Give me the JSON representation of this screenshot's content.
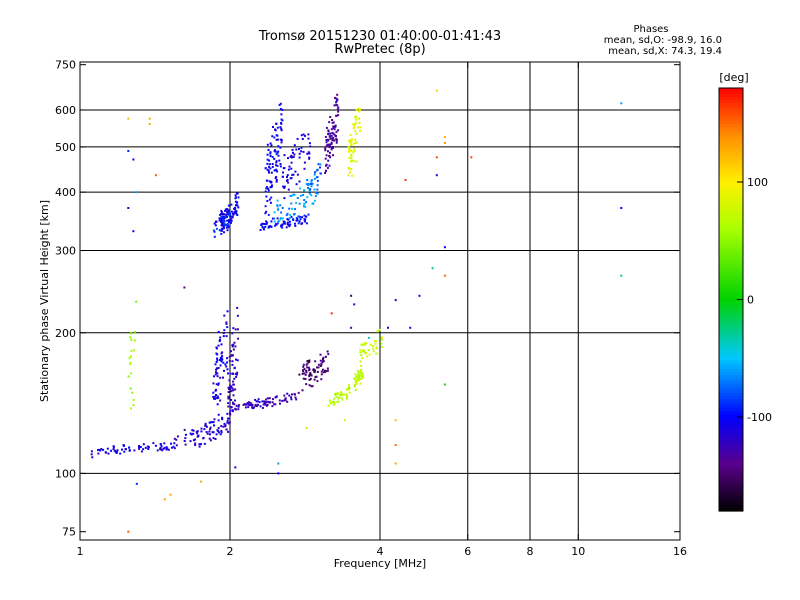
{
  "chart_data": {
    "type": "scatter",
    "title": "Tromsø 20151230 01:40:00-01:41:43",
    "subtitle": "RwPretec (8p)",
    "phase_box": {
      "title": "Phases",
      "line1": "mean, sd,O: -98.9, 16.0",
      "line2": "mean, sd,X:  74.3, 19.4"
    },
    "xlabel": "Frequency [MHz]",
    "ylabel": "Stationary phase Virtual Height [km]",
    "x_scale": "log",
    "y_scale": "log",
    "xlim": [
      1,
      16
    ],
    "ylim": [
      72,
      760
    ],
    "x_ticks": [
      1,
      2,
      4,
      6,
      8,
      10,
      16
    ],
    "x_ticklabels": [
      "1",
      "2",
      "4",
      "6",
      "8",
      "10",
      "16"
    ],
    "x_gridlines": [
      2,
      4,
      6,
      8,
      10
    ],
    "y_ticks": [
      75,
      100,
      200,
      300,
      400,
      500,
      600,
      750
    ],
    "y_ticklabels": [
      "75",
      "100",
      "200",
      "300",
      "400",
      "500",
      "600",
      "750"
    ],
    "y_gridlines": [
      100,
      200,
      300,
      400,
      500,
      600
    ],
    "grid": true,
    "colorbar": {
      "label": "[deg]",
      "min": -180,
      "max": 180,
      "ticks": [
        100,
        0,
        -100
      ],
      "ticklabels": [
        "100",
        "0",
        "-100"
      ]
    },
    "groups": [
      {
        "x": [
          1.05,
          1.55
        ],
        "y": [
          108,
          118
        ],
        "phase": -110,
        "n": 70,
        "curve": 1.0
      },
      {
        "x": [
          1.55,
          2.0
        ],
        "y": [
          112,
          135
        ],
        "phase": -115,
        "n": 80,
        "curve": 1.4
      },
      {
        "x": [
          1.85,
          1.98
        ],
        "y": [
          130,
          230
        ],
        "phase": -112,
        "n": 70,
        "curve": 1.0
      },
      {
        "x": [
          1.98,
          2.08
        ],
        "y": [
          120,
          235
        ],
        "phase": -120,
        "n": 70,
        "curve": 1.0
      },
      {
        "x": [
          2.0,
          2.3
        ],
        "y": [
          135,
          145
        ],
        "phase": -125,
        "n": 40,
        "curve": 1.0
      },
      {
        "x": [
          2.3,
          2.75
        ],
        "y": [
          138,
          150
        ],
        "phase": -130,
        "n": 45,
        "curve": 1.0
      },
      {
        "x": [
          2.75,
          3.15
        ],
        "y": [
          150,
          180
        ],
        "phase": -150,
        "n": 45,
        "curve": 1.3
      },
      {
        "x": [
          2.8,
          3.15
        ],
        "y": [
          160,
          185
        ],
        "phase": -145,
        "n": 30,
        "curve": 1.0
      },
      {
        "x": [
          3.15,
          3.5
        ],
        "y": [
          138,
          155
        ],
        "phase": 65,
        "n": 40,
        "curve": 1.0
      },
      {
        "x": [
          3.55,
          3.7
        ],
        "y": [
          150,
          172
        ],
        "phase": 70,
        "n": 40,
        "curve": 1.0
      },
      {
        "x": [
          3.65,
          4.05
        ],
        "y": [
          170,
          205
        ],
        "phase": 72,
        "n": 40,
        "curve": 1.0
      },
      {
        "x": [
          1.25,
          1.3
        ],
        "y": [
          120,
          260
        ],
        "phase": 50,
        "n": 20,
        "curve": 1.0
      },
      {
        "x": [
          1.92,
          2.08
        ],
        "y": [
          325,
          400
        ],
        "phase": -105,
        "n": 90,
        "curve": 1.0
      },
      {
        "x": [
          1.85,
          2.0
        ],
        "y": [
          320,
          370
        ],
        "phase": -95,
        "n": 40,
        "curve": 1.0
      },
      {
        "x": [
          2.3,
          2.9
        ],
        "y": [
          330,
          360
        ],
        "phase": -100,
        "n": 70,
        "curve": 1.0
      },
      {
        "x": [
          2.45,
          3.0
        ],
        "y": [
          340,
          420
        ],
        "phase": -60,
        "n": 60,
        "curve": 1.0
      },
      {
        "x": [
          2.35,
          2.55
        ],
        "y": [
          350,
          640
        ],
        "phase": -105,
        "n": 100,
        "curve": 1.0
      },
      {
        "x": [
          2.55,
          2.9
        ],
        "y": [
          380,
          560
        ],
        "phase": -110,
        "n": 60,
        "curve": 1.0
      },
      {
        "x": [
          2.85,
          3.05
        ],
        "y": [
          400,
          460
        ],
        "phase": -75,
        "n": 25,
        "curve": 1.0
      },
      {
        "x": [
          3.1,
          3.3
        ],
        "y": [
          430,
          650
        ],
        "phase": -135,
        "n": 90,
        "curve": 1.0
      },
      {
        "x": [
          3.45,
          3.65
        ],
        "y": [
          410,
          640
        ],
        "phase": 85,
        "n": 60,
        "curve": 1.0
      }
    ],
    "isolated_points": [
      {
        "x": 1.25,
        "y": 575,
        "phase": 120
      },
      {
        "x": 1.38,
        "y": 575,
        "phase": 130
      },
      {
        "x": 1.38,
        "y": 560,
        "phase": 130
      },
      {
        "x": 1.25,
        "y": 490,
        "phase": -90
      },
      {
        "x": 1.28,
        "y": 470,
        "phase": -100
      },
      {
        "x": 1.42,
        "y": 435,
        "phase": 155
      },
      {
        "x": 1.25,
        "y": 370,
        "phase": -110
      },
      {
        "x": 1.28,
        "y": 330,
        "phase": -105
      },
      {
        "x": 1.3,
        "y": 400,
        "phase": -60
      },
      {
        "x": 1.62,
        "y": 250,
        "phase": -140
      },
      {
        "x": 1.3,
        "y": 95,
        "phase": -90
      },
      {
        "x": 1.52,
        "y": 90,
        "phase": 130
      },
      {
        "x": 1.48,
        "y": 88,
        "phase": 130
      },
      {
        "x": 1.25,
        "y": 75,
        "phase": 155
      },
      {
        "x": 1.75,
        "y": 96,
        "phase": 130
      },
      {
        "x": 2.05,
        "y": 103,
        "phase": -110
      },
      {
        "x": 2.5,
        "y": 105,
        "phase": -60
      },
      {
        "x": 2.5,
        "y": 100,
        "phase": -100
      },
      {
        "x": 4.5,
        "y": 425,
        "phase": 165
      },
      {
        "x": 5.2,
        "y": 435,
        "phase": -110
      },
      {
        "x": 5.2,
        "y": 475,
        "phase": 160
      },
      {
        "x": 5.4,
        "y": 525,
        "phase": 125
      },
      {
        "x": 5.4,
        "y": 510,
        "phase": 140
      },
      {
        "x": 6.1,
        "y": 475,
        "phase": 160
      },
      {
        "x": 5.2,
        "y": 660,
        "phase": 115
      },
      {
        "x": 5.4,
        "y": 305,
        "phase": -100
      },
      {
        "x": 5.1,
        "y": 275,
        "phase": -20
      },
      {
        "x": 5.4,
        "y": 265,
        "phase": 150
      },
      {
        "x": 5.4,
        "y": 155,
        "phase": 10
      },
      {
        "x": 4.8,
        "y": 240,
        "phase": -100
      },
      {
        "x": 4.3,
        "y": 235,
        "phase": -110
      },
      {
        "x": 4.6,
        "y": 205,
        "phase": -110
      },
      {
        "x": 4.3,
        "y": 130,
        "phase": 120
      },
      {
        "x": 4.3,
        "y": 115,
        "phase": 150
      },
      {
        "x": 4.3,
        "y": 105,
        "phase": 130
      },
      {
        "x": 3.5,
        "y": 240,
        "phase": -150
      },
      {
        "x": 3.55,
        "y": 230,
        "phase": -120
      },
      {
        "x": 3.2,
        "y": 220,
        "phase": 170
      },
      {
        "x": 3.5,
        "y": 205,
        "phase": -140
      },
      {
        "x": 3.8,
        "y": 195,
        "phase": -40
      },
      {
        "x": 4.15,
        "y": 205,
        "phase": -110
      },
      {
        "x": 3.4,
        "y": 130,
        "phase": 70
      },
      {
        "x": 2.85,
        "y": 125,
        "phase": 60
      },
      {
        "x": 12.2,
        "y": 620,
        "phase": -60
      },
      {
        "x": 12.2,
        "y": 370,
        "phase": -100
      },
      {
        "x": 12.2,
        "y": 265,
        "phase": -20
      }
    ]
  }
}
